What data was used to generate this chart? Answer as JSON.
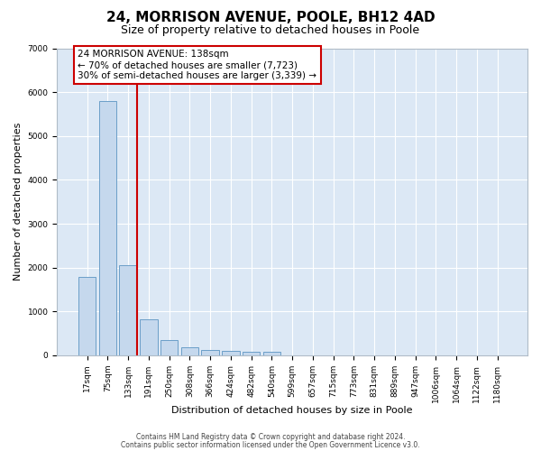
{
  "title": "24, MORRISON AVENUE, POOLE, BH12 4AD",
  "subtitle": "Size of property relative to detached houses in Poole",
  "xlabel": "Distribution of detached houses by size in Poole",
  "ylabel": "Number of detached properties",
  "categories": [
    "17sqm",
    "75sqm",
    "133sqm",
    "191sqm",
    "250sqm",
    "308sqm",
    "366sqm",
    "424sqm",
    "482sqm",
    "540sqm",
    "599sqm",
    "657sqm",
    "715sqm",
    "773sqm",
    "831sqm",
    "889sqm",
    "947sqm",
    "1006sqm",
    "1064sqm",
    "1122sqm",
    "1180sqm"
  ],
  "values": [
    1780,
    5800,
    2060,
    820,
    340,
    185,
    115,
    100,
    90,
    80,
    0,
    0,
    0,
    0,
    0,
    0,
    0,
    0,
    0,
    0,
    0
  ],
  "bar_color": "#c5d8ed",
  "bar_edge_color": "#6b9ec8",
  "property_bin_index": 2,
  "property_line_color": "#cc0000",
  "annotation_line1": "24 MORRISON AVENUE: 138sqm",
  "annotation_line2": "← 70% of detached houses are smaller (7,723)",
  "annotation_line3": "30% of semi-detached houses are larger (3,339) →",
  "annotation_box_edgecolor": "#cc0000",
  "ylim_max": 7000,
  "yticks": [
    0,
    1000,
    2000,
    3000,
    4000,
    5000,
    6000,
    7000
  ],
  "plot_bg_color": "#dce8f5",
  "grid_color": "#ffffff",
  "footer_line1": "Contains HM Land Registry data © Crown copyright and database right 2024.",
  "footer_line2": "Contains public sector information licensed under the Open Government Licence v3.0.",
  "title_fontsize": 11,
  "subtitle_fontsize": 9,
  "tick_fontsize": 6.5,
  "ylabel_fontsize": 8,
  "xlabel_fontsize": 8,
  "annotation_fontsize": 7.5,
  "footer_fontsize": 5.5
}
